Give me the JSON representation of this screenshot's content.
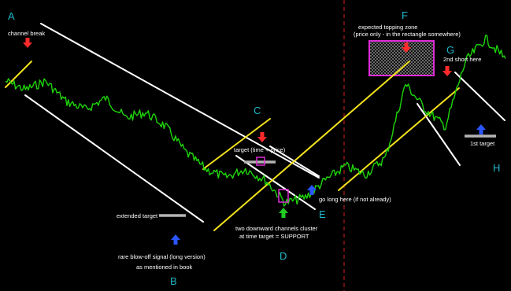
{
  "colors": {
    "background": "#000000",
    "price": "#1fd40a",
    "channel_white": "#ffffff",
    "channel_yellow": "#f2e21c",
    "letter": "#1fb6c9",
    "arrow_down": "#ff2a2a",
    "arrow_up": "#2a56ff",
    "arrow_green": "#22cc22",
    "target_bar": "#b4b4b4",
    "zone": "#e02ad8",
    "divider": "#d42020"
  },
  "chart_data": {
    "type": "line",
    "title": "",
    "xlabel": "",
    "ylabel": "",
    "grid": false,
    "legend": "none",
    "series": [
      {
        "name": "",
        "x": [
          0,
          4,
          8,
          12,
          16,
          20,
          24,
          28,
          32,
          36,
          40,
          44,
          48,
          52,
          56,
          60,
          64,
          68,
          72,
          76,
          80,
          84,
          88,
          92,
          96,
          100
        ],
        "values": [
          73,
          70,
          73,
          66,
          63,
          67,
          60,
          62,
          57,
          48,
          42,
          39,
          42,
          38,
          30,
          32,
          38,
          43,
          40,
          46,
          72,
          63,
          57,
          80,
          88,
          81
        ]
      }
    ]
  },
  "points": {
    "A": "A",
    "B": "B",
    "C": "C",
    "D": "D",
    "E": "E",
    "F": "F",
    "G": "G",
    "H": "H"
  },
  "notes": {
    "channel_break": "channel break",
    "extended_target": "extended target",
    "blowoff_1": "rare blow-off signal (long version)",
    "blowoff_2": "as mentioned in book",
    "target_tp": "target (time + price)",
    "go_long": "go long here (if not already)",
    "dc_1": "two downward channels cluster",
    "dc_2": "at time target = SUPPORT",
    "topping_1": "expected topping zone",
    "topping_2": "(price only - in the rectangle somewhere)",
    "short2": "2nd short here",
    "first_target": "1st target"
  }
}
